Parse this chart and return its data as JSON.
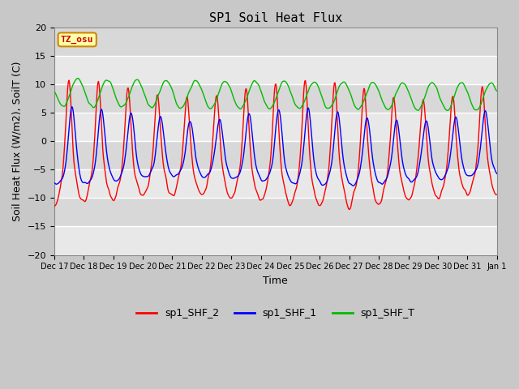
{
  "title": "SP1 Soil Heat Flux",
  "ylabel": "Soil Heat Flux (W/m2), SoilT (C)",
  "xlabel": "Time",
  "ylim": [
    -20,
    20
  ],
  "yticks": [
    -20,
    -15,
    -10,
    -5,
    0,
    5,
    10,
    15,
    20
  ],
  "fig_bg_color": "#c8c8c8",
  "plot_bg_color": "#dcdcdc",
  "line_colors": {
    "shf2": "#ff0000",
    "shf1": "#0000ff",
    "shfT": "#00bb00"
  },
  "legend_labels": [
    "sp1_SHF_2",
    "sp1_SHF_1",
    "sp1_SHF_T"
  ],
  "tz_label": "TZ_osu",
  "tz_bg": "#ffffaa",
  "tz_border": "#cc8800",
  "xticklabels": [
    "Dec 17",
    "Dec 18",
    "Dec 19",
    "Dec 20",
    "Dec 21",
    "Dec 22",
    "Dec 23",
    "Dec 24",
    "Dec 25",
    "Dec 26",
    "Dec 27",
    "Dec 28",
    "Dec 29",
    "Dec 30",
    "Dec 31",
    "Jan 1"
  ],
  "title_fontsize": 11,
  "axis_fontsize": 9,
  "tick_fontsize": 8
}
